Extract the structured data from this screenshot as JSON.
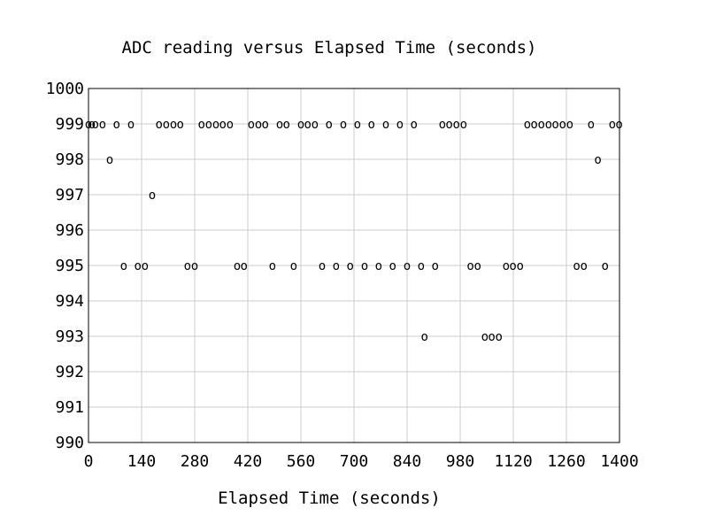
{
  "chart_data": {
    "type": "scatter",
    "title": "ADC reading versus Elapsed Time (seconds)",
    "xlabel": "Elapsed Time (seconds)",
    "ylabel": "",
    "xlim": [
      0,
      1400
    ],
    "ylim": [
      990,
      1000
    ],
    "grid": true,
    "marker": "o",
    "xticks": [
      0,
      140,
      280,
      420,
      560,
      700,
      840,
      980,
      1120,
      1260,
      1400
    ],
    "yticks": [
      990,
      991,
      992,
      993,
      994,
      995,
      996,
      997,
      998,
      999,
      1000
    ],
    "series": [
      {
        "points": [
          [
            0,
            999
          ],
          [
            9,
            999
          ],
          [
            18,
            999
          ],
          [
            37,
            999
          ],
          [
            56,
            998
          ],
          [
            74,
            999
          ],
          [
            93,
            995
          ],
          [
            112,
            999
          ],
          [
            130,
            995
          ],
          [
            149,
            995
          ],
          [
            168,
            997
          ],
          [
            186,
            999
          ],
          [
            205,
            999
          ],
          [
            224,
            999
          ],
          [
            242,
            999
          ],
          [
            261,
            995
          ],
          [
            280,
            995
          ],
          [
            298,
            999
          ],
          [
            317,
            999
          ],
          [
            336,
            999
          ],
          [
            354,
            999
          ],
          [
            373,
            999
          ],
          [
            392,
            995
          ],
          [
            410,
            995
          ],
          [
            429,
            999
          ],
          [
            448,
            999
          ],
          [
            466,
            999
          ],
          [
            485,
            995
          ],
          [
            504,
            999
          ],
          [
            522,
            999
          ],
          [
            541,
            995
          ],
          [
            560,
            999
          ],
          [
            578,
            999
          ],
          [
            597,
            999
          ],
          [
            616,
            995
          ],
          [
            634,
            999
          ],
          [
            653,
            995
          ],
          [
            672,
            999
          ],
          [
            690,
            995
          ],
          [
            709,
            999
          ],
          [
            728,
            995
          ],
          [
            746,
            999
          ],
          [
            765,
            995
          ],
          [
            784,
            999
          ],
          [
            802,
            995
          ],
          [
            821,
            999
          ],
          [
            840,
            995
          ],
          [
            858,
            999
          ],
          [
            877,
            995
          ],
          [
            886,
            993
          ],
          [
            914,
            995
          ],
          [
            933,
            999
          ],
          [
            951,
            999
          ],
          [
            970,
            999
          ],
          [
            989,
            999
          ],
          [
            1007,
            995
          ],
          [
            1026,
            995
          ],
          [
            1045,
            993
          ],
          [
            1063,
            993
          ],
          [
            1082,
            993
          ],
          [
            1101,
            995
          ],
          [
            1119,
            995
          ],
          [
            1138,
            995
          ],
          [
            1157,
            999
          ],
          [
            1175,
            999
          ],
          [
            1194,
            999
          ],
          [
            1213,
            999
          ],
          [
            1231,
            999
          ],
          [
            1250,
            999
          ],
          [
            1269,
            999
          ],
          [
            1287,
            995
          ],
          [
            1306,
            995
          ],
          [
            1325,
            999
          ],
          [
            1343,
            998
          ],
          [
            1362,
            995
          ],
          [
            1381,
            999
          ],
          [
            1399,
            999
          ]
        ]
      }
    ]
  }
}
